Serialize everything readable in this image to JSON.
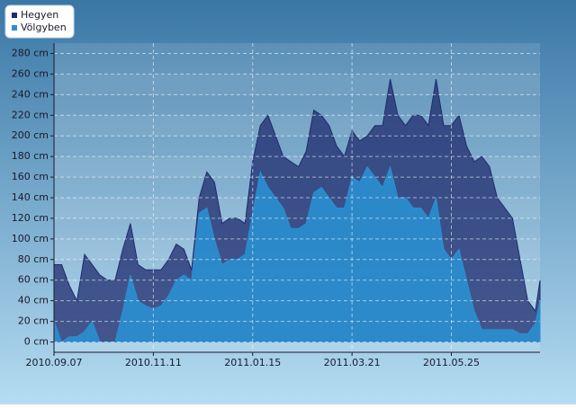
{
  "chart_data": {
    "type": "area",
    "x": [
      "2010.09.07",
      "2010.09.12",
      "2010.09.17",
      "2010.09.22",
      "2010.09.27",
      "2010.10.02",
      "2010.10.07",
      "2010.10.12",
      "2010.10.17",
      "2010.10.22",
      "2010.10.27",
      "2010.11.01",
      "2010.11.06",
      "2010.11.11",
      "2010.11.16",
      "2010.11.21",
      "2010.11.26",
      "2010.12.01",
      "2010.12.06",
      "2010.12.11",
      "2010.12.16",
      "2010.12.21",
      "2010.12.26",
      "2010.12.31",
      "2011.01.05",
      "2011.01.10",
      "2011.01.15",
      "2011.01.20",
      "2011.01.25",
      "2011.01.30",
      "2011.02.04",
      "2011.02.09",
      "2011.02.14",
      "2011.02.19",
      "2011.02.24",
      "2011.03.01",
      "2011.03.06",
      "2011.03.11",
      "2011.03.16",
      "2011.03.21",
      "2011.03.26",
      "2011.03.31",
      "2011.04.05",
      "2011.04.10",
      "2011.04.15",
      "2011.04.20",
      "2011.04.25",
      "2011.04.30",
      "2011.05.05",
      "2011.05.10",
      "2011.05.15",
      "2011.05.20",
      "2011.05.25",
      "2011.05.30",
      "2011.06.04",
      "2011.06.09",
      "2011.06.14",
      "2011.06.19",
      "2011.06.24",
      "2011.06.29",
      "2011.07.04",
      "2011.07.09",
      "2011.07.14",
      "2011.07.19",
      "2011.07.22"
    ],
    "series": [
      {
        "name": "Hegyen",
        "color": "#1f2b6e",
        "values": [
          75,
          75,
          55,
          40,
          85,
          75,
          65,
          60,
          60,
          90,
          115,
          75,
          70,
          70,
          70,
          80,
          95,
          90,
          70,
          140,
          165,
          155,
          115,
          120,
          120,
          115,
          175,
          210,
          220,
          200,
          180,
          175,
          170,
          185,
          225,
          220,
          210,
          190,
          180,
          205,
          195,
          200,
          210,
          210,
          255,
          220,
          210,
          220,
          220,
          210,
          255,
          210,
          210,
          220,
          190,
          175,
          180,
          170,
          140,
          130,
          120,
          80,
          40,
          30,
          60
        ]
      },
      {
        "name": "Völgyben",
        "color": "#2a8fd0",
        "values": [
          20,
          0,
          5,
          5,
          10,
          20,
          0,
          0,
          0,
          30,
          65,
          40,
          35,
          32,
          35,
          45,
          60,
          65,
          60,
          125,
          130,
          100,
          75,
          80,
          80,
          85,
          125,
          165,
          150,
          140,
          130,
          110,
          110,
          115,
          145,
          150,
          140,
          130,
          130,
          160,
          155,
          170,
          160,
          150,
          170,
          140,
          140,
          130,
          130,
          120,
          140,
          90,
          80,
          90,
          60,
          30,
          12,
          12,
          12,
          12,
          12,
          8,
          8,
          18,
          40
        ]
      }
    ],
    "xlim": [
      "2010.09.07",
      "2011.07.22"
    ],
    "xticks": [
      "2010.09.07",
      "2010.11.11",
      "2011.01.15",
      "2011.03.21",
      "2011.05.25"
    ],
    "ylim": [
      -10,
      290
    ],
    "yticks": [
      {
        "value": 0,
        "label": "0 cm"
      },
      {
        "value": 20,
        "label": "20 cm"
      },
      {
        "value": 40,
        "label": "40 cm"
      },
      {
        "value": 60,
        "label": "60 cm"
      },
      {
        "value": 80,
        "label": "80 cm"
      },
      {
        "value": 100,
        "label": "100 cm"
      },
      {
        "value": 120,
        "label": "120 cm"
      },
      {
        "value": 140,
        "label": "140 cm"
      },
      {
        "value": 160,
        "label": "160 cm"
      },
      {
        "value": 180,
        "label": "180 cm"
      },
      {
        "value": 200,
        "label": "200 cm"
      },
      {
        "value": 220,
        "label": "220 cm"
      },
      {
        "value": 240,
        "label": "240 cm"
      },
      {
        "value": 260,
        "label": "260 cm"
      },
      {
        "value": 280,
        "label": "280 cm"
      }
    ],
    "grid": true,
    "legend": "top-left"
  }
}
